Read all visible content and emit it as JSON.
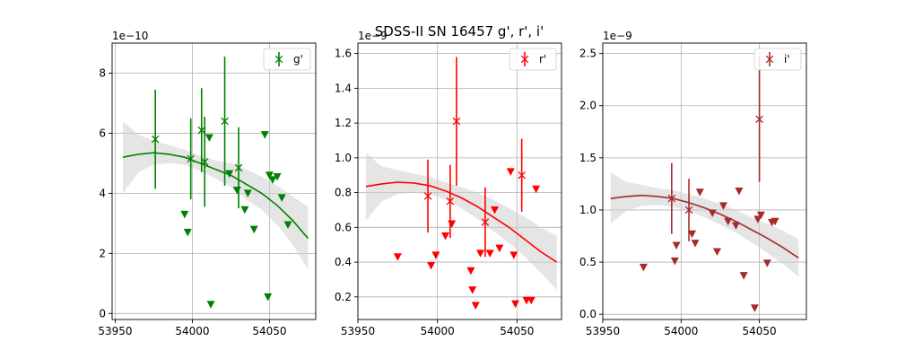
{
  "title": "SDSS-II SN 16457  g', r', i'",
  "chart_data": [
    {
      "type": "scatter",
      "band": "g'",
      "color": "#008000",
      "offset_text": "1e−10",
      "xlim": [
        53948,
        54080
      ],
      "ylim": [
        -0.2,
        9.0
      ],
      "yscale": 1e-10,
      "xticks": [
        53950,
        54000,
        54050
      ],
      "yticks": [
        0,
        2,
        4,
        6,
        8
      ],
      "ytick_labels": [
        "0",
        "2",
        "4",
        "6",
        "8"
      ],
      "grid": true,
      "legend": {
        "label": "g'",
        "position": "top-right"
      },
      "detections": [
        {
          "x": 53976,
          "y": 5.8,
          "err": 1.65
        },
        {
          "x": 53999,
          "y": 5.15,
          "err": 1.35
        },
        {
          "x": 54006,
          "y": 6.1,
          "err": 1.4
        },
        {
          "x": 54008,
          "y": 5.05,
          "err": 1.5
        },
        {
          "x": 54021,
          "y": 6.4,
          "err": 2.15
        },
        {
          "x": 54030,
          "y": 4.85,
          "err": 1.35
        }
      ],
      "upper_limits": [
        {
          "x": 53995,
          "y": 3.3
        },
        {
          "x": 53997,
          "y": 2.7
        },
        {
          "x": 54011,
          "y": 5.85
        },
        {
          "x": 54012,
          "y": 0.3
        },
        {
          "x": 54024,
          "y": 4.65
        },
        {
          "x": 54029,
          "y": 4.1
        },
        {
          "x": 54034,
          "y": 3.45
        },
        {
          "x": 54036,
          "y": 4.0
        },
        {
          "x": 54040,
          "y": 2.8
        },
        {
          "x": 54047,
          "y": 5.95
        },
        {
          "x": 54049,
          "y": 0.55
        },
        {
          "x": 54050,
          "y": 4.6
        },
        {
          "x": 54052,
          "y": 4.45
        },
        {
          "x": 54055,
          "y": 4.55
        },
        {
          "x": 54058,
          "y": 3.85
        },
        {
          "x": 54062,
          "y": 2.95
        }
      ],
      "fit": {
        "x": [
          53955,
          53965,
          53975,
          53985,
          53995,
          54005,
          54015,
          54025,
          54035,
          54045,
          54055,
          54065,
          54075
        ],
        "y": [
          5.2,
          5.3,
          5.35,
          5.3,
          5.2,
          5.0,
          4.8,
          4.6,
          4.3,
          4.0,
          3.6,
          3.1,
          2.5
        ],
        "band_lower": [
          4.0,
          4.7,
          4.95,
          5.0,
          4.95,
          4.75,
          4.5,
          4.2,
          3.8,
          3.45,
          2.95,
          2.3,
          1.45
        ],
        "band_upper": [
          6.4,
          5.95,
          5.75,
          5.6,
          5.45,
          5.25,
          5.1,
          5.0,
          4.8,
          4.55,
          4.25,
          3.9,
          3.55
        ]
      }
    },
    {
      "type": "scatter",
      "band": "r'",
      "color": "#ff0000",
      "offset_text": "1e−9",
      "xlim": [
        53950,
        54078
      ],
      "ylim": [
        0.07,
        1.66
      ],
      "yscale": 1e-09,
      "xticks": [
        53950,
        54000,
        54050
      ],
      "yticks": [
        0.2,
        0.4,
        0.6,
        0.8,
        1.0,
        1.2,
        1.4,
        1.6
      ],
      "ytick_labels": [
        "0.2",
        "0.4",
        "0.6",
        "0.8",
        "1.0",
        "1.2",
        "1.4",
        "1.6"
      ],
      "grid": true,
      "legend": {
        "label": "r'",
        "position": "top-right"
      },
      "detections": [
        {
          "x": 53994,
          "y": 0.78,
          "err": 0.21
        },
        {
          "x": 54008,
          "y": 0.75,
          "err": 0.21
        },
        {
          "x": 54012,
          "y": 1.21,
          "err": 0.37
        },
        {
          "x": 54030,
          "y": 0.63,
          "err": 0.2
        },
        {
          "x": 54053,
          "y": 0.9,
          "err": 0.21
        }
      ],
      "upper_limits": [
        {
          "x": 53975,
          "y": 0.43
        },
        {
          "x": 53996,
          "y": 0.38
        },
        {
          "x": 53999,
          "y": 0.44
        },
        {
          "x": 54005,
          "y": 0.55
        },
        {
          "x": 54009,
          "y": 0.62
        },
        {
          "x": 54021,
          "y": 0.35
        },
        {
          "x": 54022,
          "y": 0.24
        },
        {
          "x": 54024,
          "y": 0.15
        },
        {
          "x": 54027,
          "y": 0.45
        },
        {
          "x": 54033,
          "y": 0.45
        },
        {
          "x": 54036,
          "y": 0.7
        },
        {
          "x": 54039,
          "y": 0.48
        },
        {
          "x": 54046,
          "y": 0.92
        },
        {
          "x": 54048,
          "y": 0.44
        },
        {
          "x": 54049,
          "y": 0.16
        },
        {
          "x": 54056,
          "y": 0.18
        },
        {
          "x": 54059,
          "y": 0.18
        },
        {
          "x": 54062,
          "y": 0.82
        }
      ],
      "fit": {
        "x": [
          53955,
          53965,
          53975,
          53985,
          53995,
          54005,
          54015,
          54025,
          54035,
          54045,
          54055,
          54065,
          54075
        ],
        "y": [
          0.835,
          0.85,
          0.86,
          0.855,
          0.84,
          0.81,
          0.77,
          0.72,
          0.66,
          0.6,
          0.53,
          0.46,
          0.4
        ],
        "band_lower": [
          0.64,
          0.75,
          0.79,
          0.8,
          0.79,
          0.76,
          0.71,
          0.65,
          0.58,
          0.51,
          0.43,
          0.34,
          0.24
        ],
        "band_upper": [
          1.03,
          0.95,
          0.93,
          0.91,
          0.89,
          0.86,
          0.83,
          0.8,
          0.76,
          0.71,
          0.66,
          0.6,
          0.55
        ]
      }
    },
    {
      "type": "scatter",
      "band": "i'",
      "color": "#a52a2a",
      "offset_text": "1e−9",
      "xlim": [
        53950,
        54080
      ],
      "ylim": [
        -0.05,
        2.6
      ],
      "yscale": 1e-09,
      "xticks": [
        53950,
        54000,
        54050
      ],
      "yticks": [
        0.0,
        0.5,
        1.0,
        1.5,
        2.0,
        2.5
      ],
      "ytick_labels": [
        "0.0",
        "0.5",
        "1.0",
        "1.5",
        "2.0",
        "2.5"
      ],
      "grid": true,
      "legend": {
        "label": "i'",
        "position": "top-right"
      },
      "detections": [
        {
          "x": 53994,
          "y": 1.11,
          "err": 0.34
        },
        {
          "x": 54005,
          "y": 1.0,
          "err": 0.3
        },
        {
          "x": 54050,
          "y": 1.87,
          "err": 0.6
        }
      ],
      "upper_limits": [
        {
          "x": 53976,
          "y": 0.45
        },
        {
          "x": 53996,
          "y": 0.51
        },
        {
          "x": 53997,
          "y": 0.66
        },
        {
          "x": 54007,
          "y": 0.77
        },
        {
          "x": 54009,
          "y": 0.68
        },
        {
          "x": 54012,
          "y": 1.17
        },
        {
          "x": 54020,
          "y": 0.97
        },
        {
          "x": 54023,
          "y": 0.6
        },
        {
          "x": 54027,
          "y": 1.04
        },
        {
          "x": 54030,
          "y": 0.89
        },
        {
          "x": 54035,
          "y": 0.85
        },
        {
          "x": 54037,
          "y": 1.18
        },
        {
          "x": 54040,
          "y": 0.37
        },
        {
          "x": 54047,
          "y": 0.06
        },
        {
          "x": 54049,
          "y": 0.91
        },
        {
          "x": 54051,
          "y": 0.95
        },
        {
          "x": 54055,
          "y": 0.49
        },
        {
          "x": 54058,
          "y": 0.88
        },
        {
          "x": 54060,
          "y": 0.89
        }
      ],
      "fit": {
        "x": [
          53955,
          53965,
          53975,
          53985,
          53995,
          54005,
          54015,
          54025,
          54035,
          54045,
          54055,
          54065,
          54075
        ],
        "y": [
          1.11,
          1.13,
          1.14,
          1.13,
          1.11,
          1.07,
          1.02,
          0.96,
          0.89,
          0.81,
          0.73,
          0.64,
          0.54
        ],
        "band_lower": [
          0.87,
          0.99,
          1.04,
          1.05,
          1.03,
          0.99,
          0.93,
          0.86,
          0.78,
          0.69,
          0.59,
          0.48,
          0.36
        ],
        "band_upper": [
          1.36,
          1.27,
          1.24,
          1.21,
          1.19,
          1.15,
          1.11,
          1.06,
          1.0,
          0.93,
          0.87,
          0.8,
          0.72
        ]
      }
    }
  ]
}
